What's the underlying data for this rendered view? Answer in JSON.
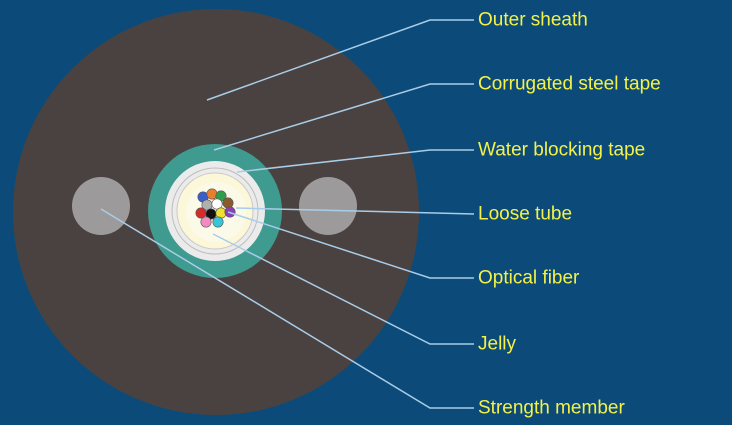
{
  "labels": {
    "outer_sheath": "Outer sheath",
    "corrugated_steel_tape": "Corrugated steel tape",
    "water_blocking_tape": "Water blocking tape",
    "loose_tube": "Loose tube",
    "optical_fiber": "Optical fiber",
    "jelly": "Jelly",
    "strength_member": "Strength member"
  },
  "colors": {
    "background": "#0c4b79",
    "sheath": "#4a4240",
    "steel_tape": "#3f9a8f",
    "strength_member": "#9c9a9b",
    "leader_line": "#a9cde8",
    "label_text": "#f3f14a"
  },
  "fiber_colors": [
    "#3a5fcd",
    "#e87f2c",
    "#2e9e4a",
    "#8b5a2b",
    "#b0b0b0",
    "#ffffff",
    "#d62b2b",
    "#111111",
    "#f2e02e",
    "#8a3fb7",
    "#f08cc2",
    "#39c4d8"
  ]
}
